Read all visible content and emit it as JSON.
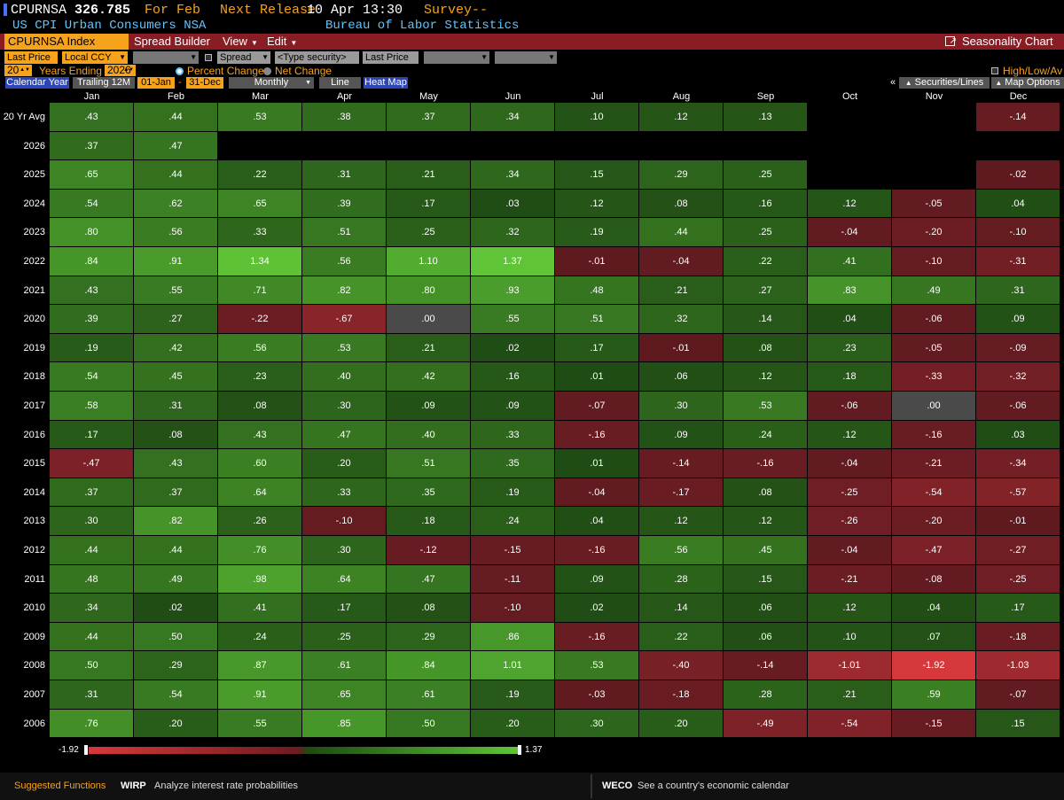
{
  "header": {
    "ticker": "CPURNSA",
    "price": "326.785",
    "for_label": "For Feb",
    "next_release_label": "Next Release",
    "next_release_value": "10 Apr 13:30",
    "survey_label": "Survey",
    "survey_value": "--",
    "description": "US CPI Urban Consumers NSA",
    "source": "Bureau of Labor Statistics"
  },
  "toolbar": {
    "security": "CPURNSA Index",
    "spread_builder": "Spread Builder",
    "view": "View",
    "edit": "Edit",
    "title": "Seasonality Chart"
  },
  "options": {
    "field1": "Last Price",
    "currency": "Local CCY",
    "spread": "Spread",
    "type_security": "<Type security>",
    "field2": "Last Price",
    "years": "20",
    "years_ending_label": "Years Ending",
    "end_year": "2026",
    "percent_change": "Percent Change",
    "net_change": "Net Change",
    "high_low": "High/Low/Av",
    "calendar_year": "Calendar Year",
    "trailing": "Trailing 12M",
    "start_date": "01-Jan",
    "dash": "-",
    "end_date": "31-Dec",
    "frequency": "Monthly",
    "line": "Line",
    "heat_map": "Heat Map",
    "collapse": "«",
    "securities_lines": "Securities/Lines",
    "map_options": "Map Options"
  },
  "colors": {
    "pos_low": "#1f4a14",
    "pos_high": "#5fc437",
    "neg_low": "#5e1a20",
    "neg_high": "#d6383c",
    "zero": "#4a4a4a",
    "orange": "#f7a21b",
    "toolbar": "#8a1c24"
  },
  "chart_data": {
    "type": "heatmap",
    "title": "Seasonality Chart",
    "value_range": [
      -1.92,
      1.37
    ],
    "legend_min": "-1.92",
    "legend_max": "1.37",
    "columns": [
      "Jan",
      "Feb",
      "Mar",
      "Apr",
      "May",
      "Jun",
      "Jul",
      "Aug",
      "Sep",
      "Oct",
      "Nov",
      "Dec"
    ],
    "rows": [
      {
        "label": "20 Yr Avg",
        "values": [
          ".43",
          ".44",
          ".53",
          ".38",
          ".37",
          ".34",
          ".10",
          ".12",
          ".13",
          "",
          "",
          "-.14"
        ]
      },
      {
        "label": "2026",
        "values": [
          ".37",
          ".47",
          "",
          "",
          "",
          "",
          "",
          "",
          "",
          "",
          "",
          ""
        ]
      },
      {
        "label": "2025",
        "values": [
          ".65",
          ".44",
          ".22",
          ".31",
          ".21",
          ".34",
          ".15",
          ".29",
          ".25",
          "",
          "",
          "-.02"
        ]
      },
      {
        "label": "2024",
        "values": [
          ".54",
          ".62",
          ".65",
          ".39",
          ".17",
          ".03",
          ".12",
          ".08",
          ".16",
          ".12",
          "-.05",
          ".04"
        ]
      },
      {
        "label": "2023",
        "values": [
          ".80",
          ".56",
          ".33",
          ".51",
          ".25",
          ".32",
          ".19",
          ".44",
          ".25",
          "-.04",
          "-.20",
          "-.10"
        ]
      },
      {
        "label": "2022",
        "values": [
          ".84",
          ".91",
          "1.34",
          ".56",
          "1.10",
          "1.37",
          "-.01",
          "-.04",
          ".22",
          ".41",
          "-.10",
          "-.31"
        ]
      },
      {
        "label": "2021",
        "values": [
          ".43",
          ".55",
          ".71",
          ".82",
          ".80",
          ".93",
          ".48",
          ".21",
          ".27",
          ".83",
          ".49",
          ".31"
        ]
      },
      {
        "label": "2020",
        "values": [
          ".39",
          ".27",
          "-.22",
          "-.67",
          ".00",
          ".55",
          ".51",
          ".32",
          ".14",
          ".04",
          "-.06",
          ".09"
        ]
      },
      {
        "label": "2019",
        "values": [
          ".19",
          ".42",
          ".56",
          ".53",
          ".21",
          ".02",
          ".17",
          "-.01",
          ".08",
          ".23",
          "-.05",
          "-.09"
        ]
      },
      {
        "label": "2018",
        "values": [
          ".54",
          ".45",
          ".23",
          ".40",
          ".42",
          ".16",
          ".01",
          ".06",
          ".12",
          ".18",
          "-.33",
          "-.32"
        ]
      },
      {
        "label": "2017",
        "values": [
          ".58",
          ".31",
          ".08",
          ".30",
          ".09",
          ".09",
          "-.07",
          ".30",
          ".53",
          "-.06",
          ".00",
          "-.06"
        ]
      },
      {
        "label": "2016",
        "values": [
          ".17",
          ".08",
          ".43",
          ".47",
          ".40",
          ".33",
          "-.16",
          ".09",
          ".24",
          ".12",
          "-.16",
          ".03"
        ]
      },
      {
        "label": "2015",
        "values": [
          "-.47",
          ".43",
          ".60",
          ".20",
          ".51",
          ".35",
          ".01",
          "-.14",
          "-.16",
          "-.04",
          "-.21",
          "-.34"
        ]
      },
      {
        "label": "2014",
        "values": [
          ".37",
          ".37",
          ".64",
          ".33",
          ".35",
          ".19",
          "-.04",
          "-.17",
          ".08",
          "-.25",
          "-.54",
          "-.57"
        ]
      },
      {
        "label": "2013",
        "values": [
          ".30",
          ".82",
          ".26",
          "-.10",
          ".18",
          ".24",
          ".04",
          ".12",
          ".12",
          "-.26",
          "-.20",
          "-.01"
        ]
      },
      {
        "label": "2012",
        "values": [
          ".44",
          ".44",
          ".76",
          ".30",
          "-.12",
          "-.15",
          "-.16",
          ".56",
          ".45",
          "-.04",
          "-.47",
          "-.27"
        ]
      },
      {
        "label": "2011",
        "values": [
          ".48",
          ".49",
          ".98",
          ".64",
          ".47",
          "-.11",
          ".09",
          ".28",
          ".15",
          "-.21",
          "-.08",
          "-.25"
        ]
      },
      {
        "label": "2010",
        "values": [
          ".34",
          ".02",
          ".41",
          ".17",
          ".08",
          "-.10",
          ".02",
          ".14",
          ".06",
          ".12",
          ".04",
          ".17"
        ]
      },
      {
        "label": "2009",
        "values": [
          ".44",
          ".50",
          ".24",
          ".25",
          ".29",
          ".86",
          "-.16",
          ".22",
          ".06",
          ".10",
          ".07",
          "-.18"
        ]
      },
      {
        "label": "2008",
        "values": [
          ".50",
          ".29",
          ".87",
          ".61",
          ".84",
          "1.01",
          ".53",
          "-.40",
          "-.14",
          "-1.01",
          "-1.92",
          "-1.03"
        ]
      },
      {
        "label": "2007",
        "values": [
          ".31",
          ".54",
          ".91",
          ".65",
          ".61",
          ".19",
          "-.03",
          "-.18",
          ".28",
          ".21",
          ".59",
          "-.07"
        ]
      },
      {
        "label": "2006",
        "values": [
          ".76",
          ".20",
          ".55",
          ".85",
          ".50",
          ".20",
          ".30",
          ".20",
          "-.49",
          "-.54",
          "-.15",
          ".15"
        ]
      }
    ]
  },
  "footer": {
    "suggested": "Suggested Functions",
    "fn1_code": "WIRP",
    "fn1_desc": "Analyze interest rate probabilities",
    "fn2_code": "WECO",
    "fn2_desc": "See a country's economic calendar"
  }
}
